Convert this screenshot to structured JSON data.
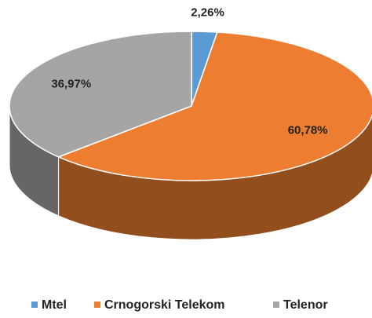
{
  "chart_data": {
    "type": "pie",
    "categories": [
      "Mtel",
      "Crnogorski Telekom",
      "Telenor"
    ],
    "values": [
      2.26,
      60.78,
      36.97
    ],
    "value_labels": [
      "2,26%",
      "60,78%",
      "36,97%"
    ],
    "colors": [
      "#5b9bd5",
      "#ed7d31",
      "#a5a5a5"
    ],
    "legend": "bottom"
  }
}
